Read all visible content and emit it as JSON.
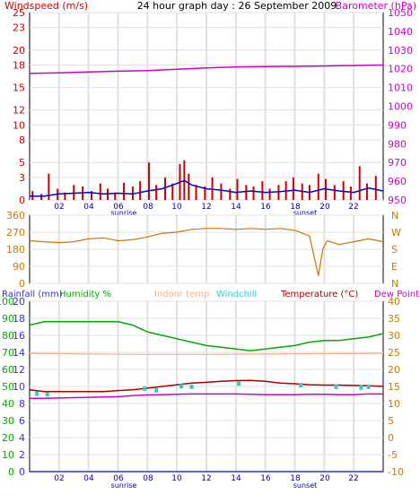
{
  "header": {
    "left_label": "Windspeed (m/s)",
    "title": "24 hour graph day : 26 September 2009",
    "right_label": "Barometer (hPa)"
  },
  "colors": {
    "wind": "#cc0000",
    "wind_avg": "#0000cc",
    "barometer": "#cc00cc",
    "direction": "#cc7700",
    "rain": "#3333cc",
    "humidity": "#00aa00",
    "indoor": "#f0b090",
    "windchill": "#33cccc",
    "temperature": "#aa0000",
    "dewpoint": "#cc00cc",
    "grid": "#e0e0e0",
    "axis_text": "#cc0000",
    "sun_text": "#0000aa"
  },
  "x_axis": {
    "ticks": [
      "02",
      "04",
      "06",
      "08",
      "10",
      "12",
      "14",
      "16",
      "18",
      "20",
      "22"
    ],
    "sunrise_label": "sunrise",
    "sunset_label": "sunset",
    "sunrise_hour": 6.4,
    "sunset_hour": 18.6
  },
  "legend_bottom": {
    "rainfall": "Rainfall (mm)",
    "humidity": "Humidity %",
    "indoor": "Indoor temp",
    "windchill": "Windchill",
    "temperature": "Temperature (°C)",
    "dewpoint": "Dew Point"
  },
  "chart_data": [
    {
      "type": "line",
      "title": "24 hour graph day : 26 September 2009",
      "x_range": [
        0,
        24
      ],
      "left_axis": {
        "label": "Windspeed (m/s)",
        "ticks": [
          0,
          3,
          5,
          8,
          10,
          12,
          15,
          18,
          20,
          23,
          25
        ],
        "range": [
          0,
          25
        ]
      },
      "right_axis": {
        "label": "Barometer (hPa)",
        "ticks": [
          950,
          960,
          970,
          980,
          990,
          1000,
          1010,
          1020,
          1030,
          1040,
          1050
        ],
        "range": [
          950,
          1050
        ]
      },
      "series": [
        {
          "name": "Windspeed (m/s)",
          "kind": "gust-bars",
          "x": [
            0.2,
            0.8,
            1.3,
            1.9,
            2.4,
            3.0,
            3.6,
            4.2,
            4.8,
            5.3,
            5.8,
            6.4,
            7.0,
            7.5,
            8.1,
            8.6,
            9.2,
            9.7,
            10.2,
            10.5,
            10.8,
            11.3,
            11.9,
            12.4,
            13.0,
            13.6,
            14.1,
            14.7,
            15.2,
            15.8,
            16.3,
            16.9,
            17.4,
            17.9,
            18.5,
            19.0,
            19.6,
            20.1,
            20.7,
            21.3,
            21.8,
            22.4,
            22.9,
            23.5
          ],
          "values": [
            1.2,
            0.8,
            3.5,
            1.5,
            1.0,
            2.0,
            1.8,
            1.2,
            2.2,
            1.5,
            1.0,
            2.3,
            1.8,
            2.5,
            5.0,
            2.0,
            3.0,
            2.2,
            4.8,
            5.3,
            3.5,
            2.0,
            1.8,
            3.0,
            2.2,
            1.5,
            2.8,
            2.0,
            1.8,
            2.5,
            1.5,
            2.0,
            2.5,
            3.0,
            2.2,
            2.0,
            3.5,
            2.8,
            2.0,
            2.5,
            1.8,
            4.5,
            2.2,
            3.2
          ]
        },
        {
          "name": "Average wind",
          "x": [
            0,
            1,
            2,
            3,
            4,
            5,
            6,
            7,
            8,
            9,
            10,
            10.5,
            11,
            12,
            13,
            14,
            15,
            16,
            17,
            18,
            19,
            20,
            21,
            22,
            23,
            24
          ],
          "values": [
            0.5,
            0.5,
            0.8,
            0.9,
            1.0,
            0.8,
            0.9,
            0.8,
            1.2,
            1.5,
            2.2,
            2.6,
            2.0,
            1.5,
            1.3,
            1.0,
            1.2,
            1.0,
            1.1,
            1.3,
            1.0,
            1.5,
            1.2,
            1.0,
            1.6,
            1.2
          ]
        },
        {
          "name": "Barometer (hPa)",
          "axis": "right",
          "x": [
            0,
            2,
            4,
            6,
            8,
            10,
            12,
            14,
            16,
            18,
            20,
            22,
            24
          ],
          "values": [
            1017.5,
            1017.8,
            1018.3,
            1018.7,
            1019.0,
            1019.7,
            1020.5,
            1021.0,
            1021.2,
            1021.3,
            1021.5,
            1021.7,
            1022.0
          ]
        }
      ]
    },
    {
      "type": "line",
      "x_range": [
        0,
        24
      ],
      "left_axis": {
        "ticks": [
          0,
          90,
          180,
          270,
          360
        ],
        "range": [
          0,
          360
        ]
      },
      "right_axis": {
        "ticks": [
          "N",
          "W",
          "S",
          "E",
          "N"
        ]
      },
      "series": [
        {
          "name": "Wind direction",
          "x": [
            0,
            1,
            2,
            3,
            4,
            5,
            6,
            7,
            8,
            9,
            10,
            11,
            12,
            13,
            14,
            15,
            16,
            17,
            18,
            19,
            19.6,
            19.9,
            20.2,
            20.6,
            21,
            22,
            23,
            24
          ],
          "values": [
            225,
            220,
            215,
            220,
            235,
            240,
            225,
            230,
            245,
            265,
            270,
            285,
            290,
            290,
            285,
            290,
            285,
            290,
            280,
            250,
            40,
            180,
            225,
            215,
            205,
            220,
            235,
            220
          ]
        }
      ]
    },
    {
      "type": "line",
      "x_range": [
        0,
        24
      ],
      "left_axis": {
        "label": "Rainfall (mm)",
        "ticks": [
          0,
          2,
          4,
          6,
          8,
          10,
          12,
          14,
          16,
          18,
          20
        ],
        "range": [
          0,
          20
        ]
      },
      "left_axis_2": {
        "label": "Humidity %",
        "ticks": [
          0,
          10,
          20,
          30,
          40,
          50,
          60,
          70,
          80,
          90,
          100
        ],
        "range": [
          0,
          100
        ]
      },
      "right_axis": {
        "label": "Temperature (°C)",
        "ticks": [
          -10,
          -5,
          0,
          5,
          10,
          15,
          20,
          25,
          30,
          35,
          40
        ],
        "range": [
          -10,
          40
        ]
      },
      "series": [
        {
          "name": "Humidity %",
          "x": [
            0,
            1,
            2,
            3,
            4,
            5,
            6,
            7,
            8,
            9,
            10,
            11,
            12,
            13,
            14,
            15,
            16,
            17,
            18,
            19,
            20,
            21,
            22,
            23,
            24
          ],
          "values": [
            86,
            88,
            88,
            88,
            88,
            88,
            88,
            86,
            82,
            80,
            78,
            76,
            74,
            73,
            72,
            71,
            72,
            73,
            74,
            76,
            77,
            77,
            78,
            79,
            81
          ]
        },
        {
          "name": "Indoor temp",
          "x": [
            0,
            4,
            8,
            12,
            16,
            20,
            24
          ],
          "values": [
            24.7,
            24.5,
            24.4,
            24.4,
            24.5,
            24.6,
            24.7
          ]
        },
        {
          "name": "Windchill",
          "x": [
            0.5,
            1.2,
            7.8,
            8.6,
            10.3,
            11.0,
            14.2,
            18.4,
            20.8,
            22.5,
            23.0
          ],
          "values": [
            13.0,
            12.8,
            14.5,
            14.0,
            15.2,
            15.0,
            16.0,
            15.5,
            15.0,
            14.8,
            15.0
          ]
        },
        {
          "name": "Temperature (°C)",
          "x": [
            0,
            1,
            2,
            3,
            4,
            5,
            6,
            7,
            8,
            9,
            10,
            11,
            12,
            13,
            14,
            15,
            16,
            17,
            18,
            19,
            20,
            21,
            22,
            23,
            24
          ],
          "values": [
            14.0,
            13.5,
            13.5,
            13.5,
            13.5,
            13.5,
            13.8,
            14.0,
            14.5,
            15.0,
            15.5,
            16.0,
            16.2,
            16.5,
            16.7,
            16.8,
            16.5,
            16.0,
            15.8,
            15.5,
            15.4,
            15.4,
            15.3,
            15.2,
            15.0
          ]
        },
        {
          "name": "Dew Point",
          "x": [
            0,
            1,
            2,
            3,
            4,
            5,
            6,
            7,
            8,
            9,
            10,
            11,
            12,
            13,
            14,
            15,
            16,
            17,
            18,
            19,
            20,
            21,
            22,
            23,
            24
          ],
          "values": [
            11.5,
            11.5,
            11.6,
            11.7,
            11.8,
            11.9,
            12.0,
            12.3,
            12.5,
            12.6,
            12.7,
            12.8,
            12.8,
            12.8,
            12.8,
            12.7,
            12.6,
            12.6,
            12.6,
            12.7,
            12.7,
            12.6,
            12.6,
            12.8,
            12.8
          ]
        },
        {
          "name": "Rainfall (mm)",
          "x": [
            0,
            24
          ],
          "values": [
            0,
            0
          ]
        }
      ]
    }
  ]
}
